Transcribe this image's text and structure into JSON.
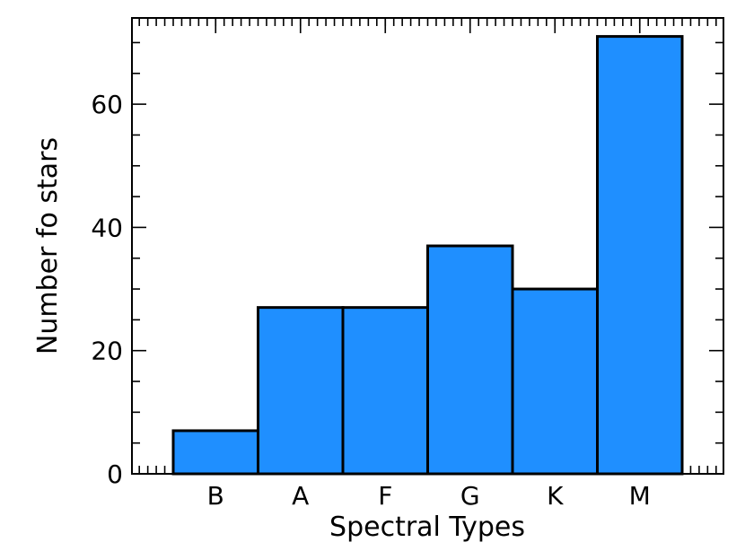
{
  "chart_data": {
    "type": "bar",
    "categories": [
      "B",
      "A",
      "F",
      "G",
      "K",
      "M"
    ],
    "values": [
      7,
      27,
      27,
      37,
      30,
      71
    ],
    "xlabel": "Spectral Types",
    "ylabel": "Number fo stars",
    "ylim": [
      0,
      74
    ],
    "yticks": [
      0,
      20,
      40,
      60
    ],
    "y_minor_step": 5,
    "bar_color": "#1f8fff",
    "grid": false,
    "legend": "none"
  }
}
